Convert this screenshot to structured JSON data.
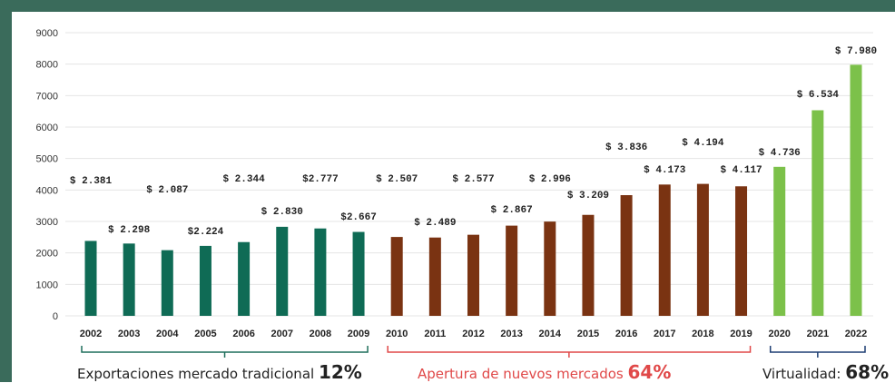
{
  "chart_data": {
    "type": "bar",
    "categories": [
      "2002",
      "2003",
      "2004",
      "2005",
      "2006",
      "2007",
      "2008",
      "2009",
      "2010",
      "2011",
      "2012",
      "2013",
      "2014",
      "2015",
      "2016",
      "2017",
      "2018",
      "2019",
      "2020",
      "2021",
      "2022"
    ],
    "values": [
      2381,
      2298,
      2087,
      2224,
      2344,
      2830,
      2777,
      2667,
      2507,
      2489,
      2577,
      2867,
      2996,
      3209,
      3836,
      4173,
      4194,
      4117,
      4736,
      6534,
      7980
    ],
    "data_labels": [
      "$ 2.381",
      "$ 2.298",
      "$ 2.087",
      "$2.224",
      "$ 2.344",
      "$ 2.830",
      "$2.777",
      "$2.667",
      "$ 2.507",
      "$ 2.489",
      "$ 2.577",
      "$ 2.867",
      "$ 2.996",
      "$ 3.209",
      "$ 3.836",
      "$ 4.173",
      "$ 4.194",
      "$ 4.117",
      "$ 4.736",
      "$ 6.534",
      "$ 7.980"
    ],
    "yticks": [
      "0",
      "1000",
      "2000",
      "3000",
      "4000",
      "5000",
      "6000",
      "7000",
      "8000",
      "9000"
    ],
    "ylim": [
      0,
      9000
    ],
    "grid": true,
    "groups": [
      {
        "label": "Exportaciones mercado tradicional",
        "percent": "12%",
        "from": 0,
        "to": 7,
        "color": "#0f6b55",
        "bracket_color": "#1f6f5c",
        "text_color": "#222222",
        "percent_color": "#222222"
      },
      {
        "label": "Apertura de nuevos mercados",
        "percent": "64%",
        "from": 8,
        "to": 17,
        "color": "#7a3312",
        "bracket_color": "#e04848",
        "text_color": "#e04848",
        "percent_color": "#e04848"
      },
      {
        "label": "Virtualidad:",
        "percent": "68%",
        "from": 18,
        "to": 20,
        "color": "#7cc14a",
        "bracket_color": "#1e3f73",
        "text_color": "#222222",
        "percent_color": "#222222"
      }
    ]
  },
  "colors": {
    "frame": "#3a6b5b",
    "grid": "#e4e4e4"
  }
}
